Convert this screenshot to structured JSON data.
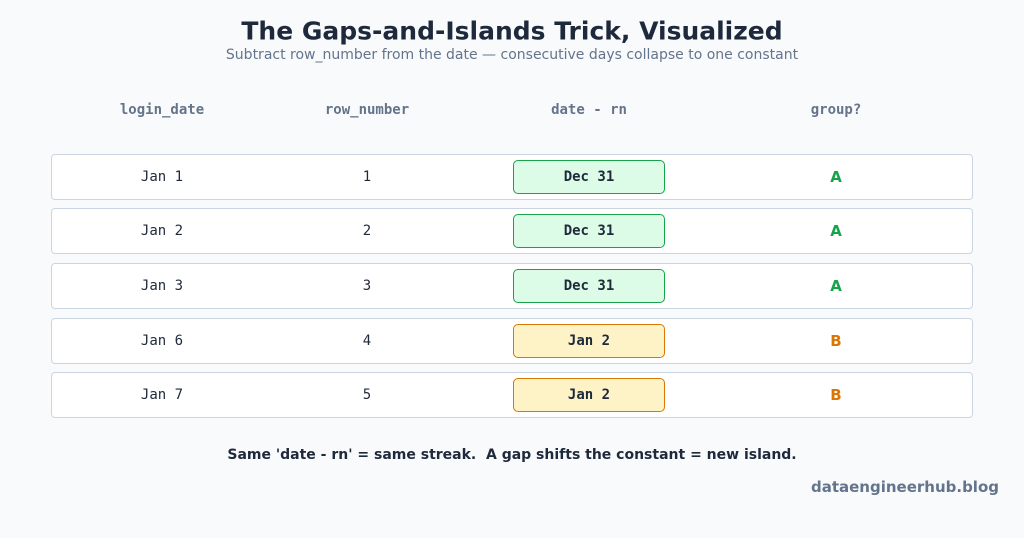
{
  "header": {
    "title": "The Gaps-and-Islands Trick, Visualized",
    "subtitle": "Subtract row_number from the date — consecutive days collapse to one constant"
  },
  "table": {
    "columns": [
      "login_date",
      "row_number",
      "date - rn",
      "group?"
    ],
    "rows": [
      {
        "login_date": "Jan 1",
        "row_number": 1,
        "date_minus_rn": "Dec 31",
        "group": "A",
        "accent": "#16a34a",
        "fill": "#dcfce7"
      },
      {
        "login_date": "Jan 2",
        "row_number": 2,
        "date_minus_rn": "Dec 31",
        "group": "A",
        "accent": "#16a34a",
        "fill": "#dcfce7"
      },
      {
        "login_date": "Jan 3",
        "row_number": 3,
        "date_minus_rn": "Dec 31",
        "group": "A",
        "accent": "#16a34a",
        "fill": "#dcfce7"
      },
      {
        "login_date": "Jan 6",
        "row_number": 4,
        "date_minus_rn": "Jan 2",
        "group": "B",
        "accent": "#d97706",
        "fill": "#fef3c7"
      },
      {
        "login_date": "Jan 7",
        "row_number": 5,
        "date_minus_rn": "Jan 2",
        "group": "B",
        "accent": "#d97706",
        "fill": "#fef3c7"
      }
    ]
  },
  "footer": {
    "note": "Same 'date - rn' = same streak.  A gap shifts the constant = new island.",
    "watermark": "dataengineerhub.blog"
  }
}
